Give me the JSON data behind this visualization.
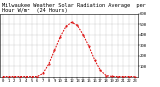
{
  "title": "Milwaukee Weather Solar Radiation Average  per Hour W/m²  (24 Hours)",
  "x_hours": [
    0,
    1,
    2,
    3,
    4,
    5,
    6,
    7,
    8,
    9,
    10,
    11,
    12,
    13,
    14,
    15,
    16,
    17,
    18,
    19,
    20,
    21,
    22,
    23
  ],
  "solar_values": [
    0,
    0,
    0,
    0,
    0,
    0,
    0.5,
    30,
    120,
    250,
    380,
    480,
    520,
    490,
    400,
    290,
    160,
    60,
    10,
    1,
    0,
    0,
    0,
    0
  ],
  "line_color": "#dd0000",
  "bg_color": "#ffffff",
  "grid_color": "#888888",
  "title_fontsize": 3.8,
  "tick_fontsize": 2.8,
  "ylim": [
    0,
    600
  ],
  "yticks": [
    100,
    200,
    300,
    400,
    500,
    600
  ],
  "xlim": [
    -0.5,
    23.5
  ],
  "figsize": [
    1.6,
    0.87
  ],
  "dpi": 100
}
